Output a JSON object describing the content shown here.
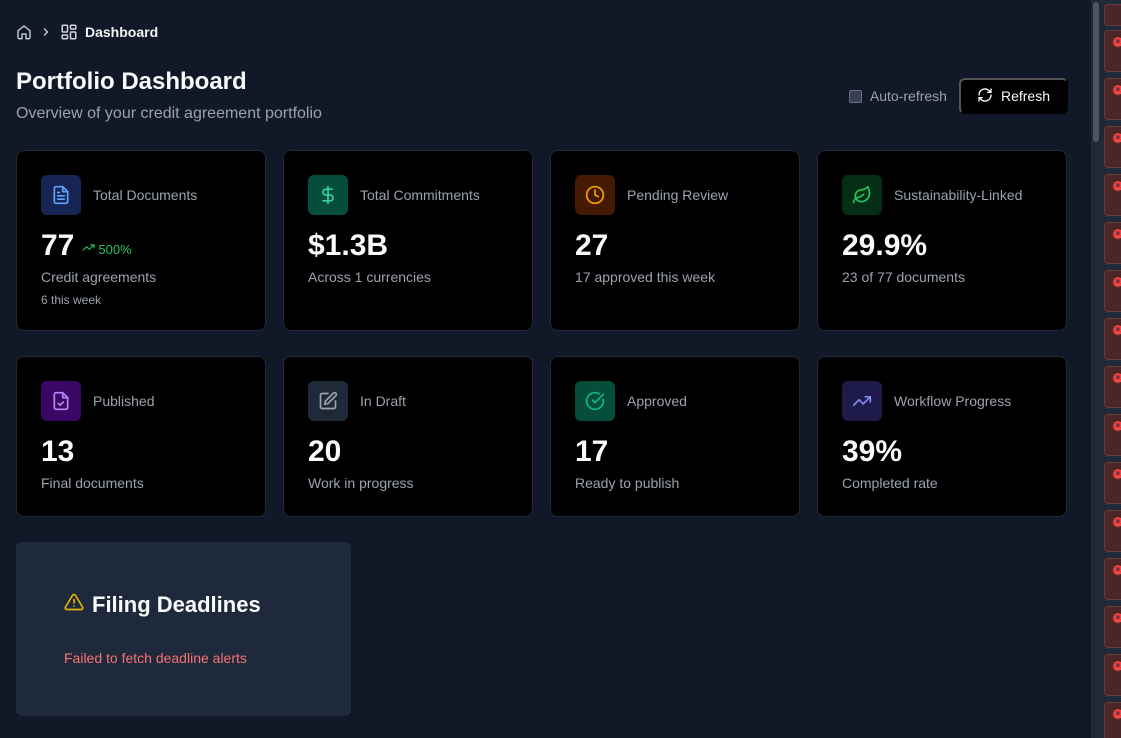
{
  "breadcrumb": {
    "current": "Dashboard"
  },
  "header": {
    "title": "Portfolio Dashboard",
    "subtitle": "Overview of your credit agreement portfolio",
    "auto_refresh_label": "Auto-refresh",
    "auto_refresh_checked": false,
    "refresh_label": "Refresh"
  },
  "stats": [
    {
      "label": "Total Documents",
      "value": "77",
      "trend": "500%",
      "desc": "Credit agreements",
      "sub": "6 this week",
      "icon": "document-icon",
      "color": "#60a5fa"
    },
    {
      "label": "Total Commitments",
      "value": "$1.3B",
      "desc": "Across 1 currencies",
      "icon": "dollar-icon",
      "color": "#34d399"
    },
    {
      "label": "Pending Review",
      "value": "27",
      "desc": "17 approved this week",
      "icon": "clock-icon",
      "color": "#f59e0b"
    },
    {
      "label": "Sustainability-Linked",
      "value": "29.9%",
      "desc": "23 of 77 documents",
      "icon": "leaf-icon",
      "color": "#22c55e"
    },
    {
      "label": "Published",
      "value": "13",
      "desc": "Final documents",
      "icon": "file-check-icon",
      "color": "#c084fc"
    },
    {
      "label": "In Draft",
      "value": "20",
      "desc": "Work in progress",
      "icon": "edit-icon",
      "color": "#9ca3af"
    },
    {
      "label": "Approved",
      "value": "17",
      "desc": "Ready to publish",
      "icon": "check-circle-icon",
      "color": "#10b981"
    },
    {
      "label": "Workflow Progress",
      "value": "39%",
      "desc": "Completed rate",
      "icon": "trending-up-icon",
      "color": "#818cf8"
    }
  ],
  "deadlines": {
    "title": "Filing Deadlines",
    "error": "Failed to fetch deadline alerts",
    "warning_color": "#eab308"
  },
  "colors": {
    "background": "#111827",
    "card": "#000000",
    "error": "#f87171",
    "trend": "#22c55e"
  }
}
